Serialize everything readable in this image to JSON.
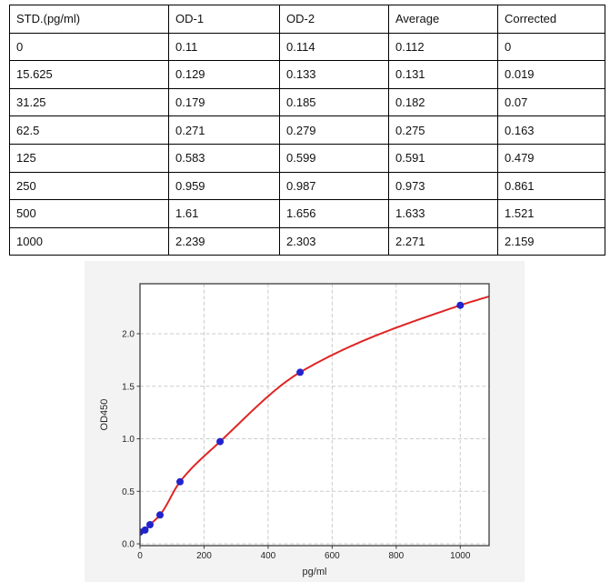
{
  "table": {
    "headers": [
      "STD.(pg/ml)",
      "OD-1",
      "OD-2",
      "Average",
      "Corrected"
    ],
    "rows": [
      [
        "0",
        "0.11",
        "0.114",
        "0.112",
        "0"
      ],
      [
        "15.625",
        "0.129",
        "0.133",
        "0.131",
        "0.019"
      ],
      [
        "31.25",
        "0.179",
        "0.185",
        "0.182",
        "0.07"
      ],
      [
        "62.5",
        "0.271",
        "0.279",
        "0.275",
        "0.163"
      ],
      [
        "125",
        "0.583",
        "0.599",
        "0.591",
        "0.479"
      ],
      [
        "250",
        "0.959",
        "0.987",
        "0.973",
        "0.861"
      ],
      [
        "500",
        "1.61",
        "1.656",
        "1.633",
        "1.521"
      ],
      [
        "1000",
        "2.239",
        "2.303",
        "2.271",
        "2.159"
      ]
    ]
  },
  "chart_data": {
    "type": "scatter",
    "title": "",
    "xlabel": "pg/ml",
    "ylabel": "OD450",
    "xlim": [
      0,
      1090
    ],
    "ylim": [
      -0.017,
      2.476
    ],
    "grid": true,
    "legend": "none",
    "x_ticks": {
      "values": [
        0,
        200,
        400,
        600,
        800,
        1000
      ],
      "labels": [
        "0",
        "200",
        "400",
        "600",
        "800",
        "1000"
      ]
    },
    "y_ticks": {
      "values": [
        0,
        0.5,
        1.0,
        1.5,
        2.0
      ],
      "labels": [
        "0.0",
        "0.5",
        "1.0",
        "1.5",
        "2.0"
      ]
    },
    "series": [
      {
        "name": "standard-points",
        "type": "scatter",
        "x": [
          0,
          15.625,
          31.25,
          62.5,
          125,
          250,
          500,
          1000
        ],
        "y": [
          0.112,
          0.131,
          0.182,
          0.275,
          0.591,
          0.973,
          1.633,
          2.271
        ]
      },
      {
        "name": "fitted-curve",
        "type": "line",
        "x": [
          0,
          15.625,
          31.25,
          62.5,
          125,
          250,
          500,
          1000,
          1090
        ],
        "y": [
          0.105,
          0.131,
          0.182,
          0.275,
          0.591,
          0.973,
          1.633,
          2.271,
          2.355
        ]
      }
    ],
    "colors": {
      "points": "#2323cc",
      "curve": "#e02424",
      "grid": "#cbcbcb",
      "figure_bg": "#f3f3f3",
      "plot_bg": "#ffffff",
      "spine": "#3d3d3d",
      "tick_text": "#262626"
    }
  }
}
